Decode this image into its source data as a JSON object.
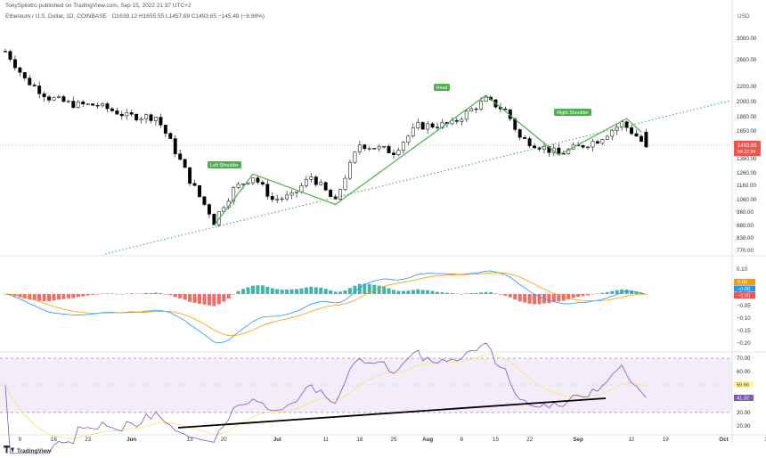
{
  "header": {
    "publisher": "TonySpilotro published on TradingView.com, Sep 15, 2022 21:37 UTC+2",
    "symbol": "Ethereum / U.S. Dollar, 1D, COINBASE",
    "ohlc": "O1639.12 H1655.55 L1457.69 C1493.65 −145.49 (−8.88%)",
    "currency": "USD",
    "brand": "TradingView"
  },
  "price_axis": {
    "labels": [
      "3000.00",
      "2600.00",
      "2200.00",
      "2000.00",
      "1800.00",
      "1650.00",
      "1390.00",
      "1260.00",
      "1160.00",
      "1060.00",
      "960.00",
      "880.00",
      "830.00",
      "770.00"
    ],
    "last_price": "1493.65",
    "countdown": "04:22:34"
  },
  "macd_axis": {
    "labels": [
      "0.10",
      "0.05",
      "0.00",
      "−0.05",
      "−0.10",
      "−0.15",
      "−0.20"
    ],
    "badges": [
      "0.00",
      "−0.00",
      "−0.00"
    ],
    "badge_colors": [
      "#ff9800",
      "#2196f3",
      "#ef5350"
    ]
  },
  "rsi_axis": {
    "labels": [
      "70.00",
      "60.00",
      "50.66",
      "41.32",
      "30.00",
      "20.00"
    ],
    "badges": [
      "50.66",
      "41.32"
    ]
  },
  "time_axis": {
    "labels": [
      "9",
      "16",
      "23",
      "Jun",
      "13",
      "20",
      "Jul",
      "11",
      "18",
      "25",
      "Aug",
      "8",
      "15",
      "22",
      "Sep",
      "12",
      "19",
      "Oct",
      "10"
    ],
    "bold": [
      "Jun",
      "Jul",
      "Aug",
      "Sep",
      "Oct"
    ]
  },
  "annotations": {
    "left_shoulder": "Left Shoulder",
    "head": "Head",
    "right_shoulder": "Right Shoulder"
  },
  "colors": {
    "up": "#ffffff",
    "down": "#000000",
    "pattern": "#4caf50",
    "trend": "#4caf50",
    "macd": "#2196f3",
    "signal": "#ff9800",
    "hist_pos": "#26a69a",
    "hist_neg": "#ef5350",
    "rsi": "#7e57c2",
    "rsi_ma": "#ffe082",
    "last_price_badge": "#ef5350"
  },
  "chart_data": {
    "type": "candlestick",
    "x": [
      "2022-05-06",
      "2022-09-15"
    ],
    "y_keyframes": [
      [
        "2022-05-06",
        2750
      ],
      [
        "2022-05-10",
        2300
      ],
      [
        "2022-05-15",
        2050
      ],
      [
        "2022-05-20",
        1960
      ],
      [
        "2022-05-25",
        1950
      ],
      [
        "2022-05-31",
        1810
      ],
      [
        "2022-06-06",
        1800
      ],
      [
        "2022-06-13",
        1200
      ],
      [
        "2022-06-18",
        900
      ],
      [
        "2022-06-22",
        1130
      ],
      [
        "2022-06-26",
        1230
      ],
      [
        "2022-06-30",
        1060
      ],
      [
        "2022-07-04",
        1080
      ],
      [
        "2022-07-08",
        1230
      ],
      [
        "2022-07-13",
        1040
      ],
      [
        "2022-07-18",
        1520
      ],
      [
        "2022-07-25",
        1450
      ],
      [
        "2022-07-30",
        1700
      ],
      [
        "2022-08-06",
        1720
      ],
      [
        "2022-08-13",
        2020
      ],
      [
        "2022-08-17",
        1880
      ],
      [
        "2022-08-20",
        1580
      ],
      [
        "2022-08-28",
        1430
      ],
      [
        "2022-09-05",
        1560
      ],
      [
        "2022-09-10",
        1730
      ],
      [
        "2022-09-13",
        1600
      ],
      [
        "2022-09-15",
        1494
      ]
    ],
    "ylim_log": [
      750,
      3200
    ]
  }
}
